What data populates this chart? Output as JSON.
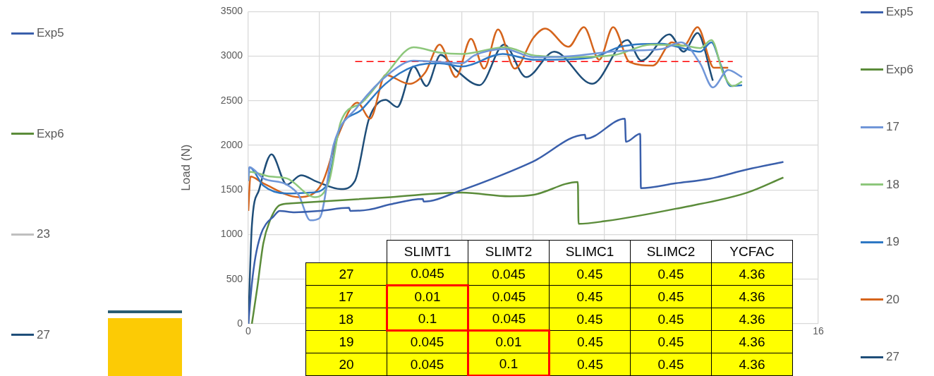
{
  "chart_data": [
    {
      "type": "line",
      "ylabel": "Load (N)",
      "xlim": [
        0,
        16
      ],
      "xticks": [
        0,
        {
          "value": 2,
          "label": null
        },
        {
          "value": 4,
          "label": null
        },
        {
          "value": 6,
          "label": null
        },
        {
          "value": 8,
          "label": null
        },
        {
          "value": 10,
          "label": null
        },
        {
          "value": 12,
          "label": null
        },
        {
          "value": 14,
          "label": null
        },
        16
      ],
      "ylim": [
        0,
        3500
      ],
      "yticks": [
        0,
        500,
        1000,
        1500,
        2000,
        2500,
        3000,
        3500
      ],
      "grid": true,
      "legend": "right",
      "marker": "none",
      "series": [
        {
          "name": "Exp5",
          "color": "#3a5fab",
          "x": [
            0,
            0.1,
            0.2,
            0.35,
            0.5,
            0.7,
            0.88,
            1.3,
            2,
            2.83,
            2.86,
            3.39,
            4,
            4.9,
            4.92,
            6,
            7,
            8,
            9.45,
            9.47,
            10.57,
            10.6,
            11.0,
            11.02,
            12,
            12.94,
            14,
            15.02
          ],
          "values": [
            0,
            450,
            750,
            1000,
            1120,
            1200,
            1265,
            1250,
            1265,
            1300,
            1265,
            1280,
            1340,
            1400,
            1370,
            1500,
            1650,
            1820,
            2120,
            2075,
            2300,
            2040,
            2130,
            1520,
            1575,
            1625,
            1730,
            1815
          ]
        },
        {
          "name": "Exp6",
          "color": "#5b8c3a",
          "x": [
            0.1,
            0.25,
            0.42,
            0.6,
            0.88,
            1.2,
            2,
            4,
            6,
            7.34,
            8,
            9.25,
            9.27,
            10,
            12,
            14,
            15.02
          ],
          "values": [
            0,
            400,
            900,
            1150,
            1330,
            1350,
            1370,
            1420,
            1470,
            1430,
            1445,
            1590,
            1120,
            1150,
            1290,
            1470,
            1640
          ]
        },
        {
          "name": "17",
          "color": "#7096d8",
          "x": [
            0,
            0.03,
            0.42,
            1.08,
            1.41,
            1.74,
            2,
            2.4,
            3.06,
            4,
            4.64,
            6,
            6.35,
            7.2,
            8,
            9,
            10.5,
            11.6,
            12.15,
            12.68,
            13.04,
            13.47,
            13.86
          ],
          "values": [
            1600,
            1755,
            1630,
            1560,
            1445,
            1160,
            1185,
            2015,
            2430,
            2820,
            2950,
            2920,
            3010,
            3080,
            2990,
            3000,
            3060,
            3080,
            3155,
            2920,
            2650,
            2845,
            2765
          ]
        },
        {
          "name": "18",
          "color": "#8dc77b",
          "x": [
            0,
            0.03,
            0.62,
            1.08,
            1.87,
            2.27,
            2.6,
            3.19,
            3.85,
            4.64,
            5.37,
            6,
            7.2,
            8,
            9,
            10.3,
            11.3,
            12.28,
            12.68,
            13,
            13.34,
            13.6,
            13.86
          ],
          "values": [
            1600,
            1705,
            1650,
            1630,
            1420,
            1600,
            2270,
            2480,
            2790,
            3100,
            3040,
            3025,
            3100,
            3010,
            2990,
            3015,
            3130,
            3115,
            3090,
            3180,
            2795,
            2665,
            2715
          ]
        },
        {
          "name": "19",
          "color": "#2e78c4",
          "x": [
            0,
            0.03,
            0.42,
            1.08,
            1.74,
            2.2,
            2.53,
            3.19,
            3.85,
            4.64,
            5.37,
            6,
            7.14,
            8,
            8.33,
            9.65,
            10.44,
            11.6,
            12.28,
            12.68,
            13,
            13.27,
            13.54,
            13.86
          ],
          "values": [
            1650,
            1755,
            1550,
            1460,
            1470,
            1550,
            2145,
            2405,
            2690,
            2885,
            2920,
            2885,
            3025,
            2960,
            2960,
            2985,
            3105,
            3140,
            3080,
            3050,
            3155,
            2895,
            2665,
            2675
          ]
        },
        {
          "name": "20",
          "color": "#d5641c",
          "x": [
            0,
            0.06,
            0.42,
            1.41,
            2.07,
            2.53,
            3.06,
            3.42,
            3.85,
            4.51,
            4.97,
            5.37,
            5.83,
            6.25,
            6.62,
            7.01,
            7.48,
            8,
            8.33,
            8.99,
            9.42,
            9.85,
            10.24,
            10.7,
            11.36,
            11.89,
            12.22,
            12.61,
            13.07,
            13.47
          ],
          "values": [
            1265,
            1650,
            1575,
            1420,
            1575,
            2120,
            2480,
            2300,
            2790,
            2690,
            2820,
            3130,
            2765,
            3195,
            2860,
            3300,
            2860,
            3205,
            3310,
            3105,
            3325,
            2960,
            3325,
            2935,
            2895,
            3155,
            3115,
            3325,
            2870,
            2870
          ]
        },
        {
          "name": "27",
          "color": "#1f4e79",
          "x": [
            0,
            0.1,
            0.3,
            0.65,
            1.08,
            1.48,
            1.94,
            2.6,
            2.99,
            3.39,
            3.85,
            4.18,
            4.64,
            5,
            5.4,
            5.83,
            6.49,
            7.18,
            7.8,
            8.59,
            9.65,
            10.64,
            11.03,
            11.82,
            12.22,
            12.61,
            13.04
          ],
          "values": [
            0,
            1100,
            1500,
            1900,
            1560,
            1665,
            1590,
            1510,
            1600,
            2300,
            2510,
            2430,
            2885,
            2665,
            3015,
            2845,
            2675,
            3130,
            2765,
            3050,
            2690,
            3180,
            2950,
            3245,
            3050,
            3260,
            2725
          ]
        },
        {
          "type": "line",
          "line_style": "dashed",
          "color": "#ff0000",
          "x": [
            3,
            13.6
          ],
          "values": [
            2940,
            2940
          ]
        }
      ]
    },
    {
      "type": "other",
      "legend": "left",
      "series": [
        {
          "name": "Exp5",
          "color": "#3a5fab"
        },
        {
          "name": "Exp6",
          "color": "#5b8c3a"
        },
        {
          "name": "23",
          "color": "#bfbfbf"
        },
        {
          "name": "27",
          "color": "#1f4e79"
        }
      ]
    },
    {
      "type": "heatmap",
      "color": "#ffff00",
      "data_labels": true,
      "categories": [
        "SLIMT1",
        "SLIMT2",
        "SLIMC1",
        "SLIMC2",
        "YCFAC"
      ],
      "y_categories": [
        "27",
        "17",
        "18",
        "19",
        "20"
      ],
      "cells": [
        [
          0.045,
          0.045,
          0.45,
          0.45,
          4.36
        ],
        [
          0.01,
          0.045,
          0.45,
          0.45,
          4.36
        ],
        [
          0.1,
          0.045,
          0.45,
          0.45,
          4.36
        ],
        [
          0.045,
          0.01,
          0.45,
          0.45,
          4.36
        ],
        [
          0.045,
          0.1,
          0.45,
          0.45,
          4.36
        ]
      ]
    }
  ]
}
